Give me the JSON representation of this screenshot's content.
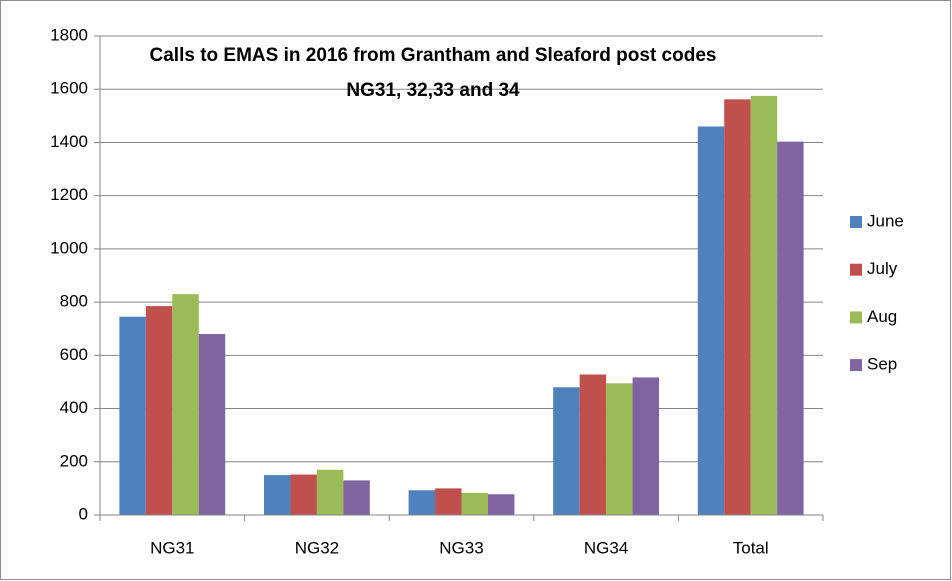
{
  "chart_data": {
    "type": "bar",
    "title": "Calls to EMAS in 2016 from Grantham and Sleaford post codes NG31, 32,33 and 34",
    "categories": [
      "NG31",
      "NG32",
      "NG33",
      "NG34",
      "Total"
    ],
    "series": [
      {
        "name": "June",
        "color": "#4f81bd",
        "values": [
          745,
          150,
          93,
          480,
          1460
        ]
      },
      {
        "name": "July",
        "color": "#c0504d",
        "values": [
          785,
          152,
          100,
          528,
          1562
        ]
      },
      {
        "name": "Aug",
        "color": "#9bbb59",
        "values": [
          830,
          170,
          83,
          495,
          1575
        ]
      },
      {
        "name": "Sep",
        "color": "#8064a2",
        "values": [
          680,
          130,
          78,
          517,
          1403
        ]
      }
    ],
    "ylim": [
      0,
      1800
    ],
    "yticks": [
      0,
      200,
      400,
      600,
      800,
      1000,
      1200,
      1400,
      1600,
      1800
    ],
    "grid": true,
    "legend": "right"
  }
}
